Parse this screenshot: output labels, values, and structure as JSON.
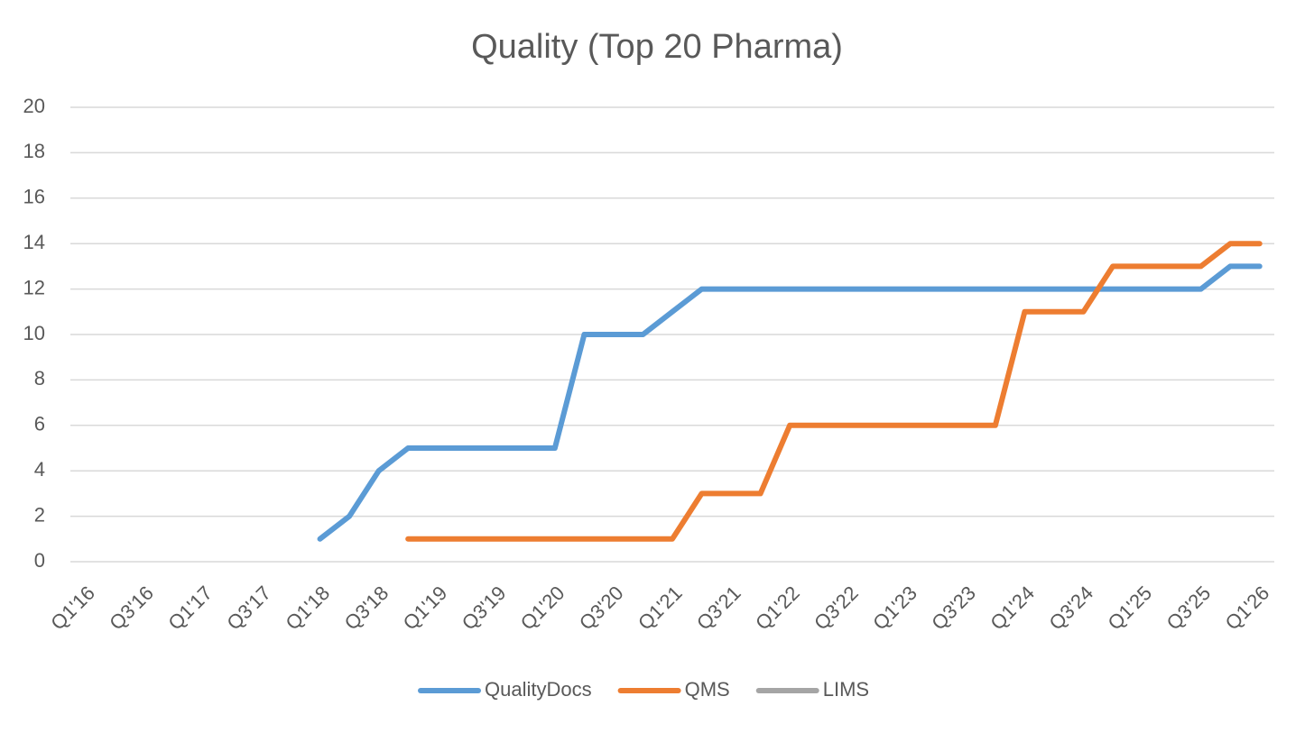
{
  "chart_data": {
    "type": "line",
    "title": "Quality (Top 20 Pharma)",
    "categories": [
      "Q1'16",
      null,
      "Q3'16",
      null,
      "Q1'17",
      null,
      "Q3'17",
      null,
      "Q1'18",
      null,
      "Q3'18",
      null,
      "Q1'19",
      null,
      "Q3'19",
      null,
      "Q1'20",
      null,
      "Q3'20",
      null,
      "Q1'21",
      null,
      "Q3'21",
      null,
      "Q1'22",
      null,
      "Q3'22",
      null,
      "Q1'23",
      null,
      "Q3'23",
      null,
      "Q1'24",
      null,
      "Q3'24",
      null,
      "Q1'25",
      null,
      "Q3'25",
      null,
      "Q1'26"
    ],
    "series": [
      {
        "name": "QualityDocs",
        "color": "#5b9bd5",
        "values": [
          null,
          null,
          null,
          null,
          null,
          null,
          null,
          null,
          1,
          2,
          4,
          5,
          5,
          5,
          5,
          5,
          5,
          10,
          10,
          10,
          11,
          12,
          12,
          12,
          12,
          12,
          12,
          12,
          12,
          12,
          12,
          12,
          12,
          12,
          12,
          12,
          12,
          12,
          12,
          13,
          13
        ]
      },
      {
        "name": "QMS",
        "color": "#ed7d31",
        "values": [
          null,
          null,
          null,
          null,
          null,
          null,
          null,
          null,
          null,
          null,
          null,
          1,
          1,
          1,
          1,
          1,
          1,
          1,
          1,
          1,
          1,
          3,
          3,
          3,
          6,
          6,
          6,
          6,
          6,
          6,
          6,
          6,
          11,
          11,
          11,
          13,
          13,
          13,
          13,
          14,
          14
        ]
      },
      {
        "name": "LIMS",
        "color": "#a5a5a5",
        "values": [
          null,
          null,
          null,
          null,
          null,
          null,
          null,
          null,
          null,
          null,
          null,
          null,
          null,
          null,
          null,
          null,
          null,
          null,
          null,
          null,
          null,
          null,
          null,
          null,
          null,
          null,
          null,
          null,
          null,
          null,
          null,
          null,
          null,
          null,
          null,
          null,
          null,
          null,
          null,
          null,
          null
        ]
      }
    ],
    "ylim": [
      0,
      20
    ],
    "yticks": [
      0,
      2,
      4,
      6,
      8,
      10,
      12,
      14,
      16,
      18,
      20
    ],
    "grid": true,
    "legend": "bottom"
  }
}
